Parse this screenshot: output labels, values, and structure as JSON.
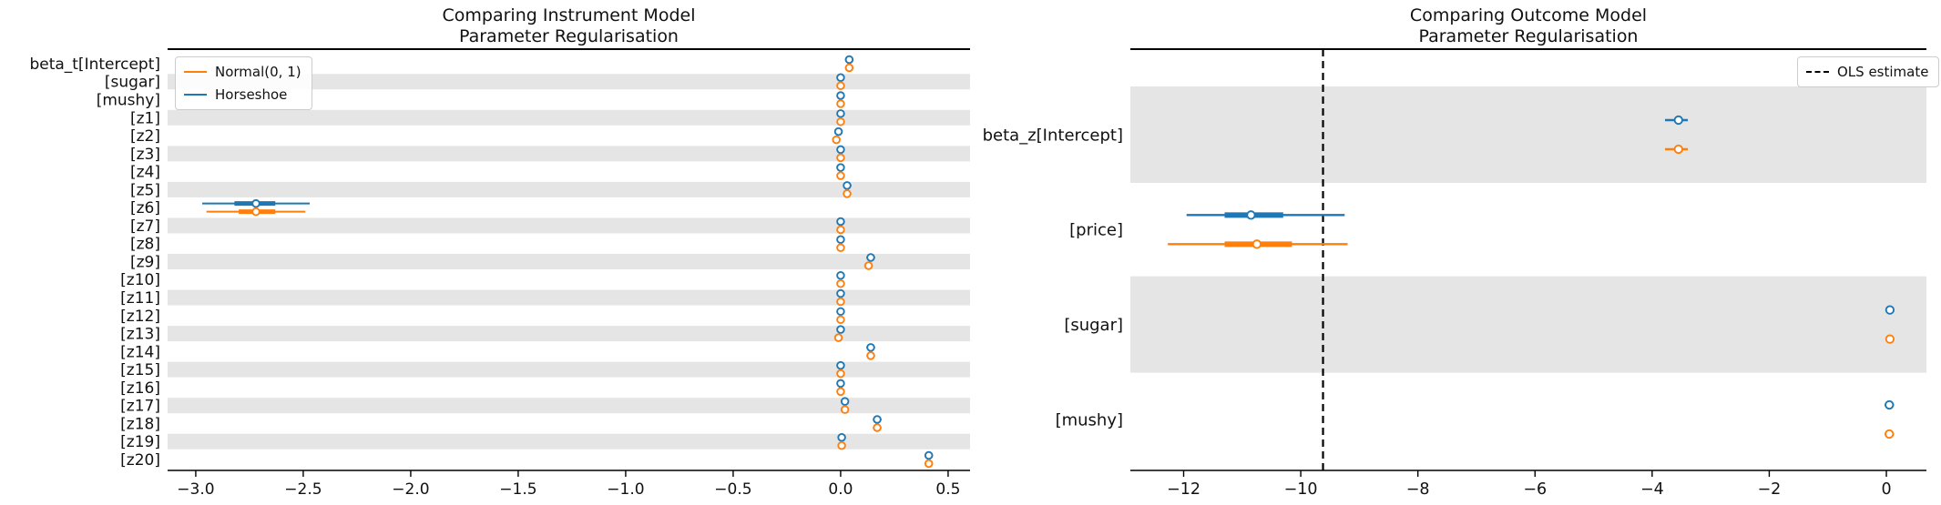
{
  "figure": {
    "background": "#ffffff",
    "colors": {
      "normal_prior": "#ff7f0e",
      "horseshoe_prior": "#1f77b4",
      "band": "#e5e5e5",
      "axis": "#000000",
      "ols_line": "#000000"
    }
  },
  "chart_data": [
    {
      "type": "forest",
      "id": "instrument-model",
      "title_lines": [
        "Comparing Instrument Model",
        "Parameter Regularisation"
      ],
      "legend": {
        "position": "top-left",
        "entries": [
          {
            "label": "Normal(0, 1)",
            "color_key": "normal_prior",
            "style": "solid"
          },
          {
            "label": "Horseshoe",
            "color_key": "horseshoe_prior",
            "style": "solid"
          }
        ]
      },
      "xlim": [
        -3.131,
        0.602
      ],
      "x_ticks": [
        {
          "v": -3.0,
          "label": "−3.0"
        },
        {
          "v": -2.5,
          "label": "−2.5"
        },
        {
          "v": -2.0,
          "label": "−2.0"
        },
        {
          "v": -1.5,
          "label": "−1.5"
        },
        {
          "v": -1.0,
          "label": "−1.0"
        },
        {
          "v": -0.5,
          "label": "−0.5"
        },
        {
          "v": 0.0,
          "label": "0.0"
        },
        {
          "v": 0.5,
          "label": "0.5"
        }
      ],
      "categories": [
        "beta_t[Intercept]",
        "[sugar]",
        "[mushy]",
        "[z1]",
        "[z2]",
        "[z3]",
        "[z4]",
        "[z5]",
        "[z6]",
        "[z7]",
        "[z8]",
        "[z9]",
        "[z10]",
        "[z11]",
        "[z12]",
        "[z13]",
        "[z14]",
        "[z15]",
        "[z16]",
        "[z17]",
        "[z18]",
        "[z19]",
        "[z20]"
      ],
      "shaded_rows": [
        1,
        3,
        5,
        7,
        9,
        11,
        13,
        15,
        17,
        19,
        21
      ],
      "series": [
        {
          "name": "Horseshoe",
          "color_key": "horseshoe_prior",
          "points": [
            {
              "m": 0.04,
              "lo": 0.02,
              "hi": 0.06
            },
            {
              "m": 0.0,
              "lo": -0.015,
              "hi": 0.015
            },
            {
              "m": 0.0,
              "lo": -0.015,
              "hi": 0.015
            },
            {
              "m": 0.0,
              "lo": -0.015,
              "hi": 0.015
            },
            {
              "m": -0.01,
              "lo": -0.025,
              "hi": 0.005
            },
            {
              "m": 0.0,
              "lo": -0.015,
              "hi": 0.015
            },
            {
              "m": 0.0,
              "lo": -0.015,
              "hi": 0.015
            },
            {
              "m": 0.03,
              "lo": 0.015,
              "hi": 0.05
            },
            {
              "m": -2.72,
              "lo": -2.97,
              "hi": -2.47,
              "tl": -2.82,
              "th": -2.63
            },
            {
              "m": 0.0,
              "lo": -0.015,
              "hi": 0.015
            },
            {
              "m": 0.0,
              "lo": -0.015,
              "hi": 0.015
            },
            {
              "m": 0.14,
              "lo": 0.12,
              "hi": 0.16
            },
            {
              "m": 0.0,
              "lo": -0.015,
              "hi": 0.015
            },
            {
              "m": 0.0,
              "lo": -0.015,
              "hi": 0.015
            },
            {
              "m": 0.0,
              "lo": -0.015,
              "hi": 0.015
            },
            {
              "m": 0.0,
              "lo": -0.015,
              "hi": 0.015
            },
            {
              "m": 0.14,
              "lo": 0.12,
              "hi": 0.16
            },
            {
              "m": 0.0,
              "lo": -0.015,
              "hi": 0.015
            },
            {
              "m": 0.0,
              "lo": -0.015,
              "hi": 0.015
            },
            {
              "m": 0.02,
              "lo": 0.005,
              "hi": 0.035
            },
            {
              "m": 0.17,
              "lo": 0.15,
              "hi": 0.19
            },
            {
              "m": 0.005,
              "lo": -0.01,
              "hi": 0.02
            },
            {
              "m": 0.41,
              "lo": 0.39,
              "hi": 0.43
            }
          ]
        },
        {
          "name": "Normal(0, 1)",
          "color_key": "normal_prior",
          "points": [
            {
              "m": 0.04,
              "lo": 0.02,
              "hi": 0.06
            },
            {
              "m": 0.0,
              "lo": -0.015,
              "hi": 0.015
            },
            {
              "m": 0.0,
              "lo": -0.015,
              "hi": 0.015
            },
            {
              "m": 0.0,
              "lo": -0.015,
              "hi": 0.015
            },
            {
              "m": -0.02,
              "lo": -0.035,
              "hi": -0.005
            },
            {
              "m": 0.0,
              "lo": -0.015,
              "hi": 0.015
            },
            {
              "m": 0.0,
              "lo": -0.015,
              "hi": 0.015
            },
            {
              "m": 0.03,
              "lo": 0.015,
              "hi": 0.05
            },
            {
              "m": -2.72,
              "lo": -2.95,
              "hi": -2.49,
              "tl": -2.8,
              "th": -2.63
            },
            {
              "m": 0.0,
              "lo": -0.015,
              "hi": 0.015
            },
            {
              "m": 0.0,
              "lo": -0.015,
              "hi": 0.015
            },
            {
              "m": 0.13,
              "lo": 0.11,
              "hi": 0.15
            },
            {
              "m": 0.0,
              "lo": -0.015,
              "hi": 0.015
            },
            {
              "m": 0.0,
              "lo": -0.015,
              "hi": 0.015
            },
            {
              "m": 0.0,
              "lo": -0.015,
              "hi": 0.015
            },
            {
              "m": -0.01,
              "lo": -0.025,
              "hi": 0.005
            },
            {
              "m": 0.14,
              "lo": 0.12,
              "hi": 0.16
            },
            {
              "m": 0.0,
              "lo": -0.015,
              "hi": 0.015
            },
            {
              "m": 0.0,
              "lo": -0.015,
              "hi": 0.015
            },
            {
              "m": 0.02,
              "lo": 0.005,
              "hi": 0.035
            },
            {
              "m": 0.17,
              "lo": 0.15,
              "hi": 0.19
            },
            {
              "m": 0.005,
              "lo": -0.01,
              "hi": 0.02
            },
            {
              "m": 0.41,
              "lo": 0.39,
              "hi": 0.43
            }
          ]
        }
      ]
    },
    {
      "type": "forest",
      "id": "outcome-model",
      "title_lines": [
        "Comparing Outcome Model",
        "Parameter Regularisation"
      ],
      "legend": {
        "position": "top-right",
        "entries": [
          {
            "label": "OLS estimate",
            "color_key": "ols_line",
            "style": "dashed"
          }
        ]
      },
      "xlim": [
        -12.91,
        0.684
      ],
      "x_ticks": [
        {
          "v": -12,
          "label": "−12"
        },
        {
          "v": -10,
          "label": "−10"
        },
        {
          "v": -8,
          "label": "−8"
        },
        {
          "v": -6,
          "label": "−6"
        },
        {
          "v": -4,
          "label": "−4"
        },
        {
          "v": -2,
          "label": "−2"
        },
        {
          "v": 0,
          "label": "0"
        }
      ],
      "categories": [
        "beta_z[Intercept]",
        "[price]",
        "[sugar]",
        "[mushy]"
      ],
      "shaded_rows": [
        0,
        2
      ],
      "ols_estimate": -9.62,
      "series": [
        {
          "name": "Horseshoe",
          "color_key": "horseshoe_prior",
          "points": [
            {
              "m": -3.55,
              "lo": -3.78,
              "hi": -3.39
            },
            {
              "m": -10.85,
              "lo": -11.95,
              "hi": -9.25,
              "tl": -11.3,
              "th": -10.3
            },
            {
              "m": 0.06,
              "lo": 0.06,
              "hi": 0.06
            },
            {
              "m": 0.05,
              "lo": -0.03,
              "hi": 0.13
            }
          ]
        },
        {
          "name": "Normal(0, 1)",
          "color_key": "normal_prior",
          "points": [
            {
              "m": -3.55,
              "lo": -3.78,
              "hi": -3.39
            },
            {
              "m": -10.75,
              "lo": -12.27,
              "hi": -9.2,
              "tl": -11.3,
              "th": -10.15
            },
            {
              "m": 0.06,
              "lo": 0.06,
              "hi": 0.06
            },
            {
              "m": 0.05,
              "lo": -0.03,
              "hi": 0.13
            }
          ]
        }
      ]
    }
  ]
}
